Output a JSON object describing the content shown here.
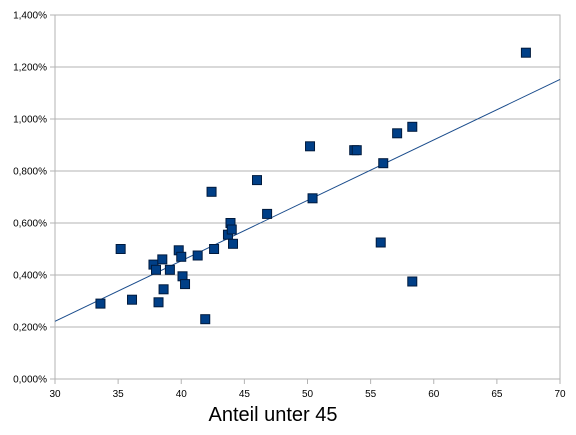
{
  "chart_data": {
    "type": "scatter",
    "title": "",
    "xlabel": "Anteil unter 45",
    "ylabel": "",
    "xlim": [
      30,
      70
    ],
    "ylim": [
      0,
      1.4
    ],
    "x_ticks": [
      30,
      35,
      40,
      45,
      50,
      55,
      60,
      65,
      70
    ],
    "x_tick_labels": [
      "30",
      "35",
      "40",
      "45",
      "50",
      "55",
      "60",
      "65",
      "70"
    ],
    "y_ticks": [
      0,
      0.2,
      0.4,
      0.6,
      0.8,
      1.0,
      1.2,
      1.4
    ],
    "y_tick_labels": [
      "0,000%",
      "0,200%",
      "0,400%",
      "0,600%",
      "0,800%",
      "1,000%",
      "1,200%",
      "1,400%"
    ],
    "grid": "horizontal",
    "legend": "none",
    "series": [
      {
        "marker": "square",
        "color": "#003f87",
        "points": [
          {
            "x": 33.6,
            "y": 0.29
          },
          {
            "x": 35.2,
            "y": 0.5
          },
          {
            "x": 36.1,
            "y": 0.305
          },
          {
            "x": 37.8,
            "y": 0.44
          },
          {
            "x": 38.0,
            "y": 0.42
          },
          {
            "x": 38.2,
            "y": 0.295
          },
          {
            "x": 38.5,
            "y": 0.46
          },
          {
            "x": 38.6,
            "y": 0.345
          },
          {
            "x": 39.1,
            "y": 0.42
          },
          {
            "x": 39.8,
            "y": 0.495
          },
          {
            "x": 40.0,
            "y": 0.47
          },
          {
            "x": 40.1,
            "y": 0.395
          },
          {
            "x": 40.3,
            "y": 0.365
          },
          {
            "x": 41.3,
            "y": 0.475
          },
          {
            "x": 41.9,
            "y": 0.23
          },
          {
            "x": 42.4,
            "y": 0.72
          },
          {
            "x": 42.6,
            "y": 0.5
          },
          {
            "x": 43.7,
            "y": 0.555
          },
          {
            "x": 43.9,
            "y": 0.6
          },
          {
            "x": 44.0,
            "y": 0.575
          },
          {
            "x": 44.1,
            "y": 0.52
          },
          {
            "x": 46.0,
            "y": 0.765
          },
          {
            "x": 46.8,
            "y": 0.635
          },
          {
            "x": 50.2,
            "y": 0.895
          },
          {
            "x": 50.4,
            "y": 0.695
          },
          {
            "x": 53.7,
            "y": 0.88
          },
          {
            "x": 53.9,
            "y": 0.88
          },
          {
            "x": 55.8,
            "y": 0.525
          },
          {
            "x": 56.0,
            "y": 0.83
          },
          {
            "x": 57.1,
            "y": 0.945
          },
          {
            "x": 58.3,
            "y": 0.97
          },
          {
            "x": 58.3,
            "y": 0.375
          },
          {
            "x": 67.3,
            "y": 1.255
          }
        ]
      }
    ],
    "trendline": {
      "type": "linear",
      "color": "#1a4c8c",
      "x": [
        30,
        70
      ],
      "y": [
        0.222,
        1.152
      ]
    }
  }
}
